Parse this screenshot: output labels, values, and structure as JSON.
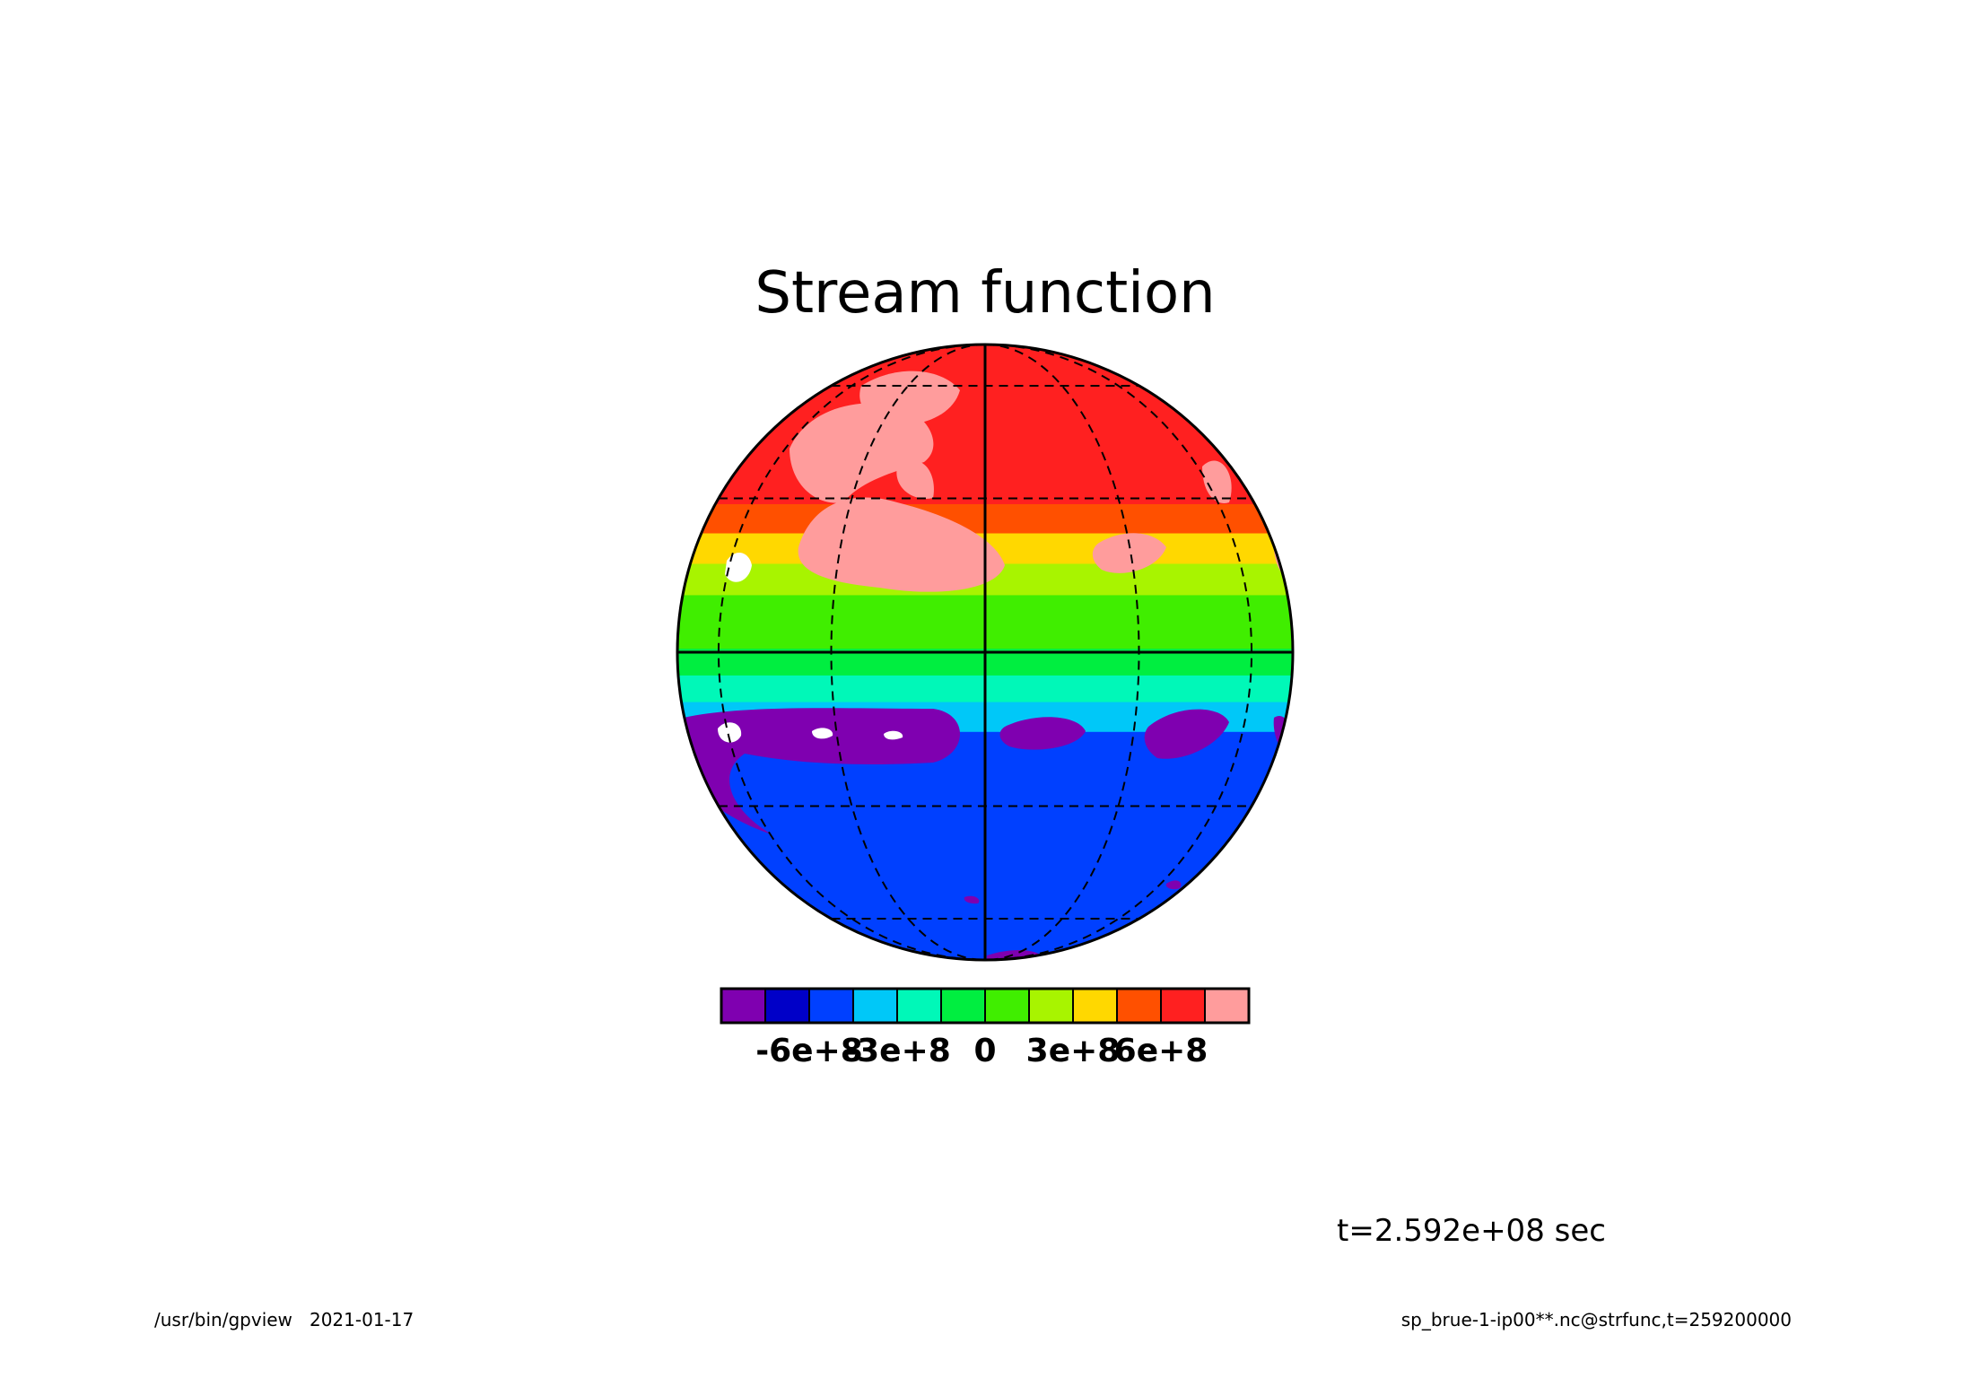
{
  "chart_data": {
    "type": "heatmap",
    "title": "Stream function",
    "projection": "orthographic",
    "colorbar": {
      "levels": [
        -750000000,
        -600000000,
        -450000000,
        -300000000,
        -150000000,
        0,
        150000000,
        300000000,
        450000000,
        600000000,
        750000000
      ],
      "colors": [
        "#7f00b0",
        "#0000c8",
        "#0040ff",
        "#00c8f8",
        "#00f8b8",
        "#00ee40",
        "#40ee00",
        "#a8f400",
        "#ffd800",
        "#ff5000",
        "#ff2020",
        "#ff9c9c"
      ],
      "tick_labels": [
        "-6e+8",
        "-3e+8",
        "0",
        "3e+8",
        "6e+8"
      ],
      "tick_values": [
        -600000000,
        -300000000,
        0,
        300000000,
        600000000
      ]
    },
    "bands_by_latitude": [
      {
        "lat": [
          28,
          90
        ],
        "value": 650000000,
        "note": "mix of red and light red"
      },
      {
        "lat": [
          22,
          28
        ],
        "value": 560000000
      },
      {
        "lat": [
          16,
          22
        ],
        "value": 400000000
      },
      {
        "lat": [
          10,
          16
        ],
        "value": 250000000
      },
      {
        "lat": [
          5,
          10
        ],
        "value": 120000000
      },
      {
        "lat": [
          0,
          5
        ],
        "value": 20000000
      },
      {
        "lat": [
          -5,
          0
        ],
        "value": -80000000
      },
      {
        "lat": [
          -10,
          -5
        ],
        "value": -230000000
      },
      {
        "lat": [
          -15,
          -10
        ],
        "value": -380000000
      },
      {
        "lat": [
          -90,
          -15
        ],
        "value": -520000000,
        "note": "dark blue with purple patches"
      }
    ],
    "grid": true,
    "grid_latitudes": [
      -60,
      -30,
      0,
      30,
      60
    ],
    "grid_longitudes": [
      -60,
      -30,
      0,
      30,
      60
    ]
  },
  "time_label": "t=2.592e+08 sec",
  "footer": {
    "left": "/usr/bin/gpview   2021-01-17",
    "right": "sp_brue-1-ip00**.nc@strfunc,t=259200000"
  }
}
